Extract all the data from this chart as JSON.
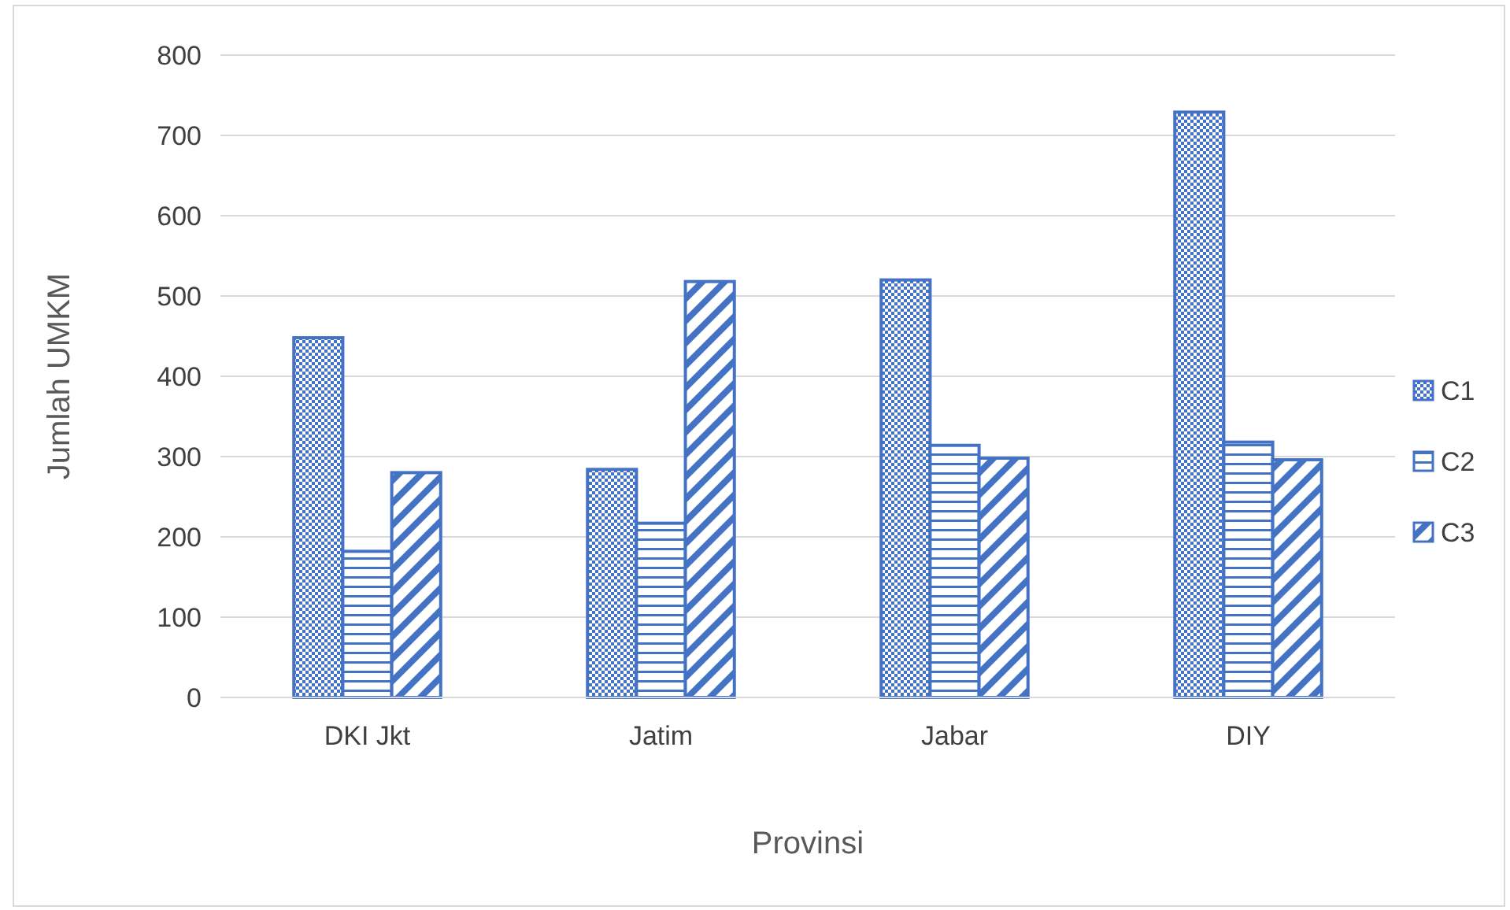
{
  "chart_data": {
    "type": "bar",
    "xlabel": "Provinsi",
    "ylabel": "Jumlah UMKM",
    "categories": [
      "DKI Jkt",
      "Jatim",
      "Jabar",
      "DIY"
    ],
    "series": [
      {
        "name": "C1",
        "color": "#4472c4",
        "values": [
          448,
          284,
          520,
          729
        ]
      },
      {
        "name": "C2",
        "color": "#4472c4",
        "values": [
          182,
          217,
          314,
          318
        ]
      },
      {
        "name": "C3",
        "color": "#4472c4",
        "values": [
          280,
          518,
          298,
          296
        ]
      }
    ],
    "ylim": [
      0,
      800
    ],
    "yticks": [
      0,
      100,
      200,
      300,
      400,
      500,
      600,
      700,
      800
    ],
    "grid": "y",
    "legend": "right"
  }
}
